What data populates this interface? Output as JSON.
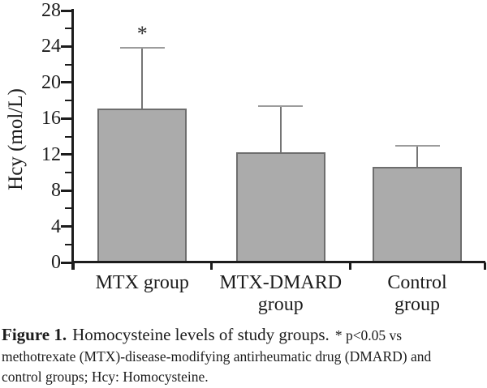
{
  "caption": {
    "label": "Figure 1.",
    "title": "Homocysteine levels of study groups.",
    "note_line1": "* p<0.05 vs",
    "note_line2": "methotrexate (MTX)-disease-modifying antirheumatic drug (DMARD) and",
    "note_line3": "control groups; Hcy: Homocysteine."
  },
  "chart_data": {
    "type": "bar",
    "categories": [
      "MTX group",
      "MTX-DMARD group",
      "Control group"
    ],
    "category_lines": [
      [
        "MTX group"
      ],
      [
        "MTX-DMARD",
        "group"
      ],
      [
        "Control",
        "group"
      ]
    ],
    "values": [
      17.1,
      12.2,
      10.6
    ],
    "error_upper": [
      6.8,
      5.2,
      2.4
    ],
    "annotations": [
      {
        "category_index": 0,
        "symbol": "*"
      }
    ],
    "xlabel": "",
    "ylabel": "Hcy (mol/L)",
    "ylim": [
      0,
      28
    ],
    "yticks": [
      0,
      4,
      8,
      12,
      16,
      20,
      24,
      28
    ],
    "yticks_minor": [
      2,
      6,
      10,
      14,
      18,
      22,
      26
    ],
    "grid": false,
    "legend": false,
    "bar_color": "#ababab",
    "bar_border_color": "#6e6e6e",
    "error_line_color": "#757575",
    "error_cap_color": "#9c9c9c",
    "axis_color": "#1c1c1c"
  }
}
